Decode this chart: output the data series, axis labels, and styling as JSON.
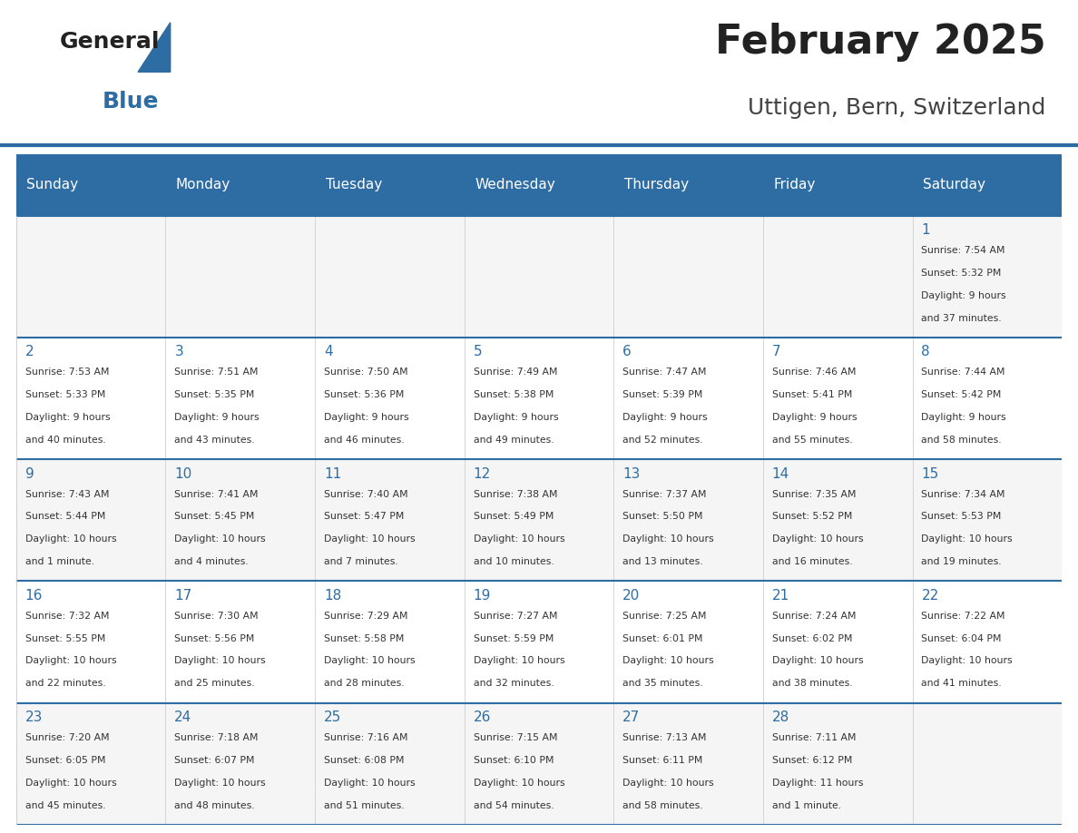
{
  "title": "February 2025",
  "subtitle": "Uttigen, Bern, Switzerland",
  "header_bg": "#2E6DA4",
  "header_text_color": "#FFFFFF",
  "border_color": "#2E6DA4",
  "day_headers": [
    "Sunday",
    "Monday",
    "Tuesday",
    "Wednesday",
    "Thursday",
    "Friday",
    "Saturday"
  ],
  "title_color": "#222222",
  "subtitle_color": "#444444",
  "day_number_color": "#2E6DA4",
  "cell_text_color": "#333333",
  "cell_bg_even": "#F5F5F5",
  "cell_bg_odd": "#FFFFFF",
  "logo_general_color": "#222222",
  "logo_blue_color": "#2E6DA4",
  "logo_triangle_color": "#2E6DA4",
  "calendar": [
    [
      null,
      null,
      null,
      null,
      null,
      null,
      {
        "day": 1,
        "sunrise": "7:54 AM",
        "sunset": "5:32 PM",
        "daylight": "9 hours and 37 minutes."
      }
    ],
    [
      {
        "day": 2,
        "sunrise": "7:53 AM",
        "sunset": "5:33 PM",
        "daylight": "9 hours and 40 minutes."
      },
      {
        "day": 3,
        "sunrise": "7:51 AM",
        "sunset": "5:35 PM",
        "daylight": "9 hours and 43 minutes."
      },
      {
        "day": 4,
        "sunrise": "7:50 AM",
        "sunset": "5:36 PM",
        "daylight": "9 hours and 46 minutes."
      },
      {
        "day": 5,
        "sunrise": "7:49 AM",
        "sunset": "5:38 PM",
        "daylight": "9 hours and 49 minutes."
      },
      {
        "day": 6,
        "sunrise": "7:47 AM",
        "sunset": "5:39 PM",
        "daylight": "9 hours and 52 minutes."
      },
      {
        "day": 7,
        "sunrise": "7:46 AM",
        "sunset": "5:41 PM",
        "daylight": "9 hours and 55 minutes."
      },
      {
        "day": 8,
        "sunrise": "7:44 AM",
        "sunset": "5:42 PM",
        "daylight": "9 hours and 58 minutes."
      }
    ],
    [
      {
        "day": 9,
        "sunrise": "7:43 AM",
        "sunset": "5:44 PM",
        "daylight": "10 hours and 1 minute."
      },
      {
        "day": 10,
        "sunrise": "7:41 AM",
        "sunset": "5:45 PM",
        "daylight": "10 hours and 4 minutes."
      },
      {
        "day": 11,
        "sunrise": "7:40 AM",
        "sunset": "5:47 PM",
        "daylight": "10 hours and 7 minutes."
      },
      {
        "day": 12,
        "sunrise": "7:38 AM",
        "sunset": "5:49 PM",
        "daylight": "10 hours and 10 minutes."
      },
      {
        "day": 13,
        "sunrise": "7:37 AM",
        "sunset": "5:50 PM",
        "daylight": "10 hours and 13 minutes."
      },
      {
        "day": 14,
        "sunrise": "7:35 AM",
        "sunset": "5:52 PM",
        "daylight": "10 hours and 16 minutes."
      },
      {
        "day": 15,
        "sunrise": "7:34 AM",
        "sunset": "5:53 PM",
        "daylight": "10 hours and 19 minutes."
      }
    ],
    [
      {
        "day": 16,
        "sunrise": "7:32 AM",
        "sunset": "5:55 PM",
        "daylight": "10 hours and 22 minutes."
      },
      {
        "day": 17,
        "sunrise": "7:30 AM",
        "sunset": "5:56 PM",
        "daylight": "10 hours and 25 minutes."
      },
      {
        "day": 18,
        "sunrise": "7:29 AM",
        "sunset": "5:58 PM",
        "daylight": "10 hours and 28 minutes."
      },
      {
        "day": 19,
        "sunrise": "7:27 AM",
        "sunset": "5:59 PM",
        "daylight": "10 hours and 32 minutes."
      },
      {
        "day": 20,
        "sunrise": "7:25 AM",
        "sunset": "6:01 PM",
        "daylight": "10 hours and 35 minutes."
      },
      {
        "day": 21,
        "sunrise": "7:24 AM",
        "sunset": "6:02 PM",
        "daylight": "10 hours and 38 minutes."
      },
      {
        "day": 22,
        "sunrise": "7:22 AM",
        "sunset": "6:04 PM",
        "daylight": "10 hours and 41 minutes."
      }
    ],
    [
      {
        "day": 23,
        "sunrise": "7:20 AM",
        "sunset": "6:05 PM",
        "daylight": "10 hours and 45 minutes."
      },
      {
        "day": 24,
        "sunrise": "7:18 AM",
        "sunset": "6:07 PM",
        "daylight": "10 hours and 48 minutes."
      },
      {
        "day": 25,
        "sunrise": "7:16 AM",
        "sunset": "6:08 PM",
        "daylight": "10 hours and 51 minutes."
      },
      {
        "day": 26,
        "sunrise": "7:15 AM",
        "sunset": "6:10 PM",
        "daylight": "10 hours and 54 minutes."
      },
      {
        "day": 27,
        "sunrise": "7:13 AM",
        "sunset": "6:11 PM",
        "daylight": "10 hours and 58 minutes."
      },
      {
        "day": 28,
        "sunrise": "7:11 AM",
        "sunset": "6:12 PM",
        "daylight": "11 hours and 1 minute."
      },
      null
    ]
  ]
}
